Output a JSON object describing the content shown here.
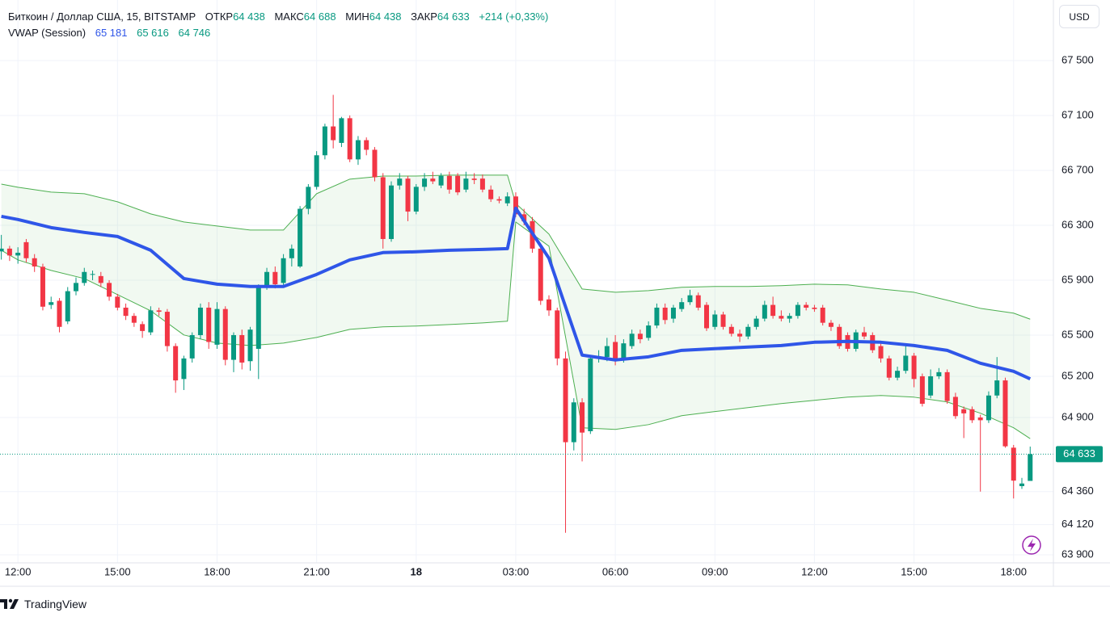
{
  "header": {
    "symbol": "Биткоин / Доллар США, 15, BITSTAMP",
    "ohlc": [
      {
        "label": "ОТКР",
        "value": "64 438"
      },
      {
        "label": "МАКС",
        "value": "64 688"
      },
      {
        "label": "МИН",
        "value": "64 438"
      },
      {
        "label": "ЗАКР",
        "value": "64 633"
      }
    ],
    "change": "+214 (+0,33%)",
    "indicator": "VWAP (Session)",
    "indicator_values": [
      "65 181",
      "65 616",
      "64 746"
    ],
    "currency": "USD"
  },
  "chart_data": {
    "type": "candlestick",
    "x": [
      11.5,
      11.75,
      12,
      12.25,
      12.5,
      12.75,
      13,
      13.25,
      13.5,
      13.75,
      14,
      14.25,
      14.5,
      14.75,
      15,
      15.25,
      15.5,
      15.75,
      16,
      16.25,
      16.5,
      16.75,
      17,
      17.25,
      17.5,
      17.75,
      18,
      18.25,
      18.5,
      18.75,
      19,
      19.25,
      19.5,
      19.75,
      20,
      20.25,
      20.5,
      20.75,
      21,
      21.25,
      21.5,
      21.75,
      22,
      22.25,
      22.5,
      22.75,
      23,
      23.25,
      23.5,
      23.75,
      24,
      24.25,
      24.5,
      24.75,
      25,
      25.25,
      25.5,
      25.75,
      26,
      26.25,
      26.5,
      26.75,
      27,
      27.25,
      27.5,
      27.75,
      28,
      28.25,
      28.5,
      28.75,
      29,
      29.25,
      29.5,
      29.75,
      30,
      30.25,
      30.5,
      30.75,
      31,
      31.25,
      31.5,
      31.75,
      32,
      32.25,
      32.5,
      32.75,
      33,
      33.25,
      33.5,
      33.75,
      34,
      34.25,
      34.5,
      34.75,
      35,
      35.25,
      35.5,
      35.75,
      36,
      36.25,
      36.5,
      36.75,
      37,
      37.25,
      37.5,
      37.75,
      38,
      38.25,
      38.5,
      38.75,
      39,
      39.25,
      39.5,
      39.75,
      40,
      40.25,
      40.5,
      40.75,
      41,
      41.25,
      41.5,
      41.75,
      42,
      42.25,
      42.5
    ],
    "open": [
      66110,
      66130,
      66080,
      66177,
      66060,
      65998,
      65720,
      65750,
      65600,
      65820,
      65880,
      65940,
      65930,
      65880,
      65780,
      65700,
      65640,
      65580,
      65520,
      65680,
      65670,
      65420,
      65180,
      65330,
      65500,
      65700,
      65430,
      65690,
      65320,
      65500,
      65310,
      65400,
      65850,
      65960,
      65880,
      66060,
      66000,
      66420,
      66580,
      66810,
      67020,
      66900,
      67080,
      66780,
      66920,
      66850,
      66650,
      66200,
      66590,
      66640,
      66400,
      66580,
      66640,
      66590,
      66660,
      66660,
      66560,
      66640,
      66640,
      66560,
      66490,
      66460,
      66510,
      66380,
      66330,
      66130,
      65760,
      65680,
      65330,
      64720,
      65010,
      64800,
      65330,
      65340,
      65450,
      65330,
      65420,
      65510,
      65480,
      65570,
      65700,
      65620,
      65690,
      65740,
      65790,
      65720,
      65560,
      65650,
      65560,
      65510,
      65490,
      65560,
      65620,
      65720,
      65640,
      65620,
      65640,
      65720,
      65700,
      65700,
      65590,
      65560,
      65500,
      65400,
      65520,
      65500,
      65420,
      65330,
      65190,
      65240,
      65350,
      65200,
      65060,
      65200,
      65230,
      65050,
      64960,
      64960,
      64900,
      64880,
      65060,
      65170,
      64680,
      64400,
      64438
    ],
    "high": [
      66230,
      66150,
      66140,
      66200,
      66090,
      66020,
      65780,
      65770,
      65850,
      65920,
      65990,
      65970,
      65960,
      65900,
      65800,
      65730,
      65660,
      65600,
      65710,
      65700,
      65690,
      65440,
      65350,
      65520,
      65730,
      65740,
      65740,
      65710,
      65520,
      65540,
      65560,
      65870,
      65990,
      66000,
      66090,
      66160,
      66440,
      66600,
      66840,
      67040,
      67250,
      67090,
      67100,
      66950,
      66940,
      66870,
      66680,
      66620,
      66680,
      66660,
      66600,
      66680,
      66690,
      66680,
      66690,
      66680,
      66690,
      66680,
      66670,
      66590,
      66510,
      66540,
      66540,
      66420,
      66360,
      66160,
      65790,
      65700,
      65380,
      65040,
      65040,
      65350,
      65390,
      65480,
      65500,
      65470,
      65540,
      65540,
      65600,
      65730,
      65730,
      65720,
      65770,
      65830,
      65810,
      65740,
      65680,
      65670,
      65580,
      65540,
      65580,
      65640,
      65750,
      65780,
      65680,
      65660,
      65740,
      65740,
      65720,
      65720,
      65610,
      65580,
      65520,
      65540,
      65560,
      65520,
      65440,
      65350,
      65270,
      65420,
      65370,
      65220,
      65250,
      65260,
      65250,
      65080,
      64980,
      64980,
      64920,
      65090,
      65340,
      65190,
      64700,
      64460,
      64688
    ],
    "low": [
      66050,
      66040,
      66020,
      66030,
      65960,
      65680,
      65690,
      65520,
      65580,
      65790,
      65860,
      65900,
      65850,
      65750,
      65680,
      65610,
      65560,
      65480,
      65500,
      65640,
      65380,
      65080,
      65100,
      65300,
      65470,
      65400,
      65400,
      65280,
      65230,
      65250,
      65240,
      65180,
      65830,
      65840,
      65860,
      66000,
      65990,
      66380,
      66560,
      66780,
      66860,
      66870,
      66760,
      66740,
      66810,
      66620,
      66130,
      66180,
      66560,
      66330,
      66380,
      66550,
      66600,
      66570,
      66530,
      66520,
      66540,
      66600,
      66540,
      66470,
      66460,
      66440,
      66360,
      66300,
      66100,
      65720,
      65640,
      65280,
      64060,
      64660,
      64580,
      64780,
      65300,
      65310,
      65280,
      65300,
      65400,
      65440,
      65460,
      65550,
      65580,
      65590,
      65670,
      65720,
      65680,
      65530,
      65540,
      65540,
      65490,
      65450,
      65470,
      65540,
      65600,
      65620,
      65600,
      65590,
      65620,
      65680,
      65670,
      65570,
      65530,
      65400,
      65380,
      65380,
      65470,
      65370,
      65300,
      65170,
      65170,
      65220,
      65120,
      64980,
      65040,
      65180,
      65000,
      64890,
      64750,
      64860,
      64360,
      64860,
      65040,
      64680,
      64310,
      64380,
      64438
    ],
    "close": [
      66130,
      66080,
      66100,
      66060,
      66000,
      65707,
      65740,
      65560,
      65820,
      65880,
      65960,
      65945,
      65880,
      65780,
      65700,
      65640,
      65590,
      65530,
      65680,
      65670,
      65420,
      65170,
      65330,
      65500,
      65700,
      65450,
      65690,
      65320,
      65500,
      65300,
      65540,
      65850,
      65960,
      65870,
      66060,
      66130,
      66420,
      66580,
      66810,
      67020,
      66920,
      67080,
      66780,
      66920,
      66850,
      66650,
      66200,
      66590,
      66640,
      66400,
      66580,
      66640,
      66620,
      66660,
      66560,
      66540,
      66640,
      66630,
      66560,
      66490,
      66480,
      66510,
      66380,
      66330,
      66130,
      65750,
      65680,
      65330,
      64720,
      65010,
      64790,
      65330,
      65340,
      65420,
      65320,
      65440,
      65510,
      65470,
      65570,
      65700,
      65610,
      65700,
      65740,
      65790,
      65700,
      65550,
      65650,
      65560,
      65510,
      65490,
      65560,
      65620,
      65720,
      65640,
      65620,
      65640,
      65720,
      65700,
      65690,
      65590,
      65560,
      65420,
      65400,
      65520,
      65490,
      65390,
      65330,
      65190,
      65240,
      65350,
      65180,
      65000,
      65200,
      65230,
      65020,
      64910,
      64930,
      64880,
      64880,
      65060,
      65170,
      64690,
      64440,
      64419,
      64633
    ],
    "up_color": "#089981",
    "down_color": "#f23645",
    "lines": [
      {
        "color": "#2f56e8",
        "x": [
          11.5,
          12,
          13,
          14,
          15,
          16,
          17,
          18,
          19,
          20,
          21,
          22,
          23,
          24,
          25,
          26,
          26.75,
          27,
          28,
          29,
          30,
          31,
          32,
          33,
          34,
          35,
          36,
          37,
          38,
          39,
          40,
          41,
          42,
          42.5
        ],
        "values": [
          66365,
          66342,
          66283,
          66248,
          66218,
          66118,
          65912,
          65871,
          65854,
          65854,
          65942,
          66048,
          66101,
          66107,
          66118,
          66124,
          66130,
          66424,
          66060,
          65354,
          65319,
          65342,
          65389,
          65401,
          65413,
          65424,
          65448,
          65454,
          65448,
          65424,
          65389,
          65295,
          65236,
          65181
        ]
      },
      {
        "color": "#4caf50",
        "x": [
          11.5,
          12,
          13,
          14,
          15,
          16,
          17,
          18,
          19,
          20,
          21,
          22,
          23,
          24,
          25,
          26,
          26.75,
          27,
          28,
          29,
          30,
          31,
          32,
          33,
          34,
          35,
          36,
          37,
          38,
          39,
          40,
          41,
          42,
          42.5
        ],
        "values": [
          66600,
          66577,
          66542,
          66530,
          66471,
          66383,
          66324,
          66295,
          66265,
          66265,
          66530,
          66636,
          66659,
          66659,
          66665,
          66665,
          66665,
          66459,
          66236,
          65836,
          65812,
          65824,
          65848,
          65854,
          65854,
          65860,
          65871,
          65866,
          65836,
          65812,
          65754,
          65695,
          65660,
          65616
        ]
      },
      {
        "color": "#4caf50",
        "x": [
          11.5,
          12,
          13,
          14,
          15,
          16,
          17,
          18,
          19,
          20,
          21,
          22,
          23,
          24,
          25,
          26,
          26.75,
          27,
          28,
          29,
          30,
          31,
          32,
          33,
          34,
          35,
          36,
          37,
          38,
          39,
          40,
          41,
          42,
          42.5
        ],
        "values": [
          66118,
          66048,
          65971,
          65912,
          65795,
          65677,
          65501,
          65442,
          65424,
          65442,
          65483,
          65542,
          65560,
          65566,
          65577,
          65589,
          65601,
          66324,
          66148,
          64825,
          64813,
          64848,
          64913,
          64943,
          64972,
          65001,
          65025,
          65048,
          65060,
          65048,
          65013,
          64931,
          64825,
          64746
        ]
      }
    ],
    "band_fill": "rgba(76,175,80,0.08)",
    "xlim": [
      11.46,
      43.2
    ],
    "ylim": [
      63841,
      67941
    ],
    "xticks": [
      {
        "value": 12,
        "label": "12:00"
      },
      {
        "value": 15,
        "label": "15:00"
      },
      {
        "value": 18,
        "label": "18:00"
      },
      {
        "value": 21,
        "label": "21:00"
      },
      {
        "value": 24,
        "label": "18"
      },
      {
        "value": 27,
        "label": "03:00"
      },
      {
        "value": 30,
        "label": "06:00"
      },
      {
        "value": 33,
        "label": "09:00"
      },
      {
        "value": 36,
        "label": "12:00"
      },
      {
        "value": 39,
        "label": "15:00"
      },
      {
        "value": 42,
        "label": "18:00"
      }
    ],
    "yticks": [
      {
        "value": 63900,
        "label": "63 900"
      },
      {
        "value": 64120,
        "label": "64 120"
      },
      {
        "value": 64360,
        "label": "64 360"
      },
      {
        "value": 64900,
        "label": "64 900"
      },
      {
        "value": 65200,
        "label": "65 200"
      },
      {
        "value": 65500,
        "label": "65 500"
      },
      {
        "value": 65900,
        "label": "65 900"
      },
      {
        "value": 66300,
        "label": "66 300"
      },
      {
        "value": 66700,
        "label": "66 700"
      },
      {
        "value": 67100,
        "label": "67 100"
      },
      {
        "value": 67500,
        "label": "67 500"
      }
    ],
    "last_price": {
      "value": 64633,
      "label": "64 633"
    },
    "grid": true
  },
  "footer": {
    "brand": "TradingView"
  }
}
